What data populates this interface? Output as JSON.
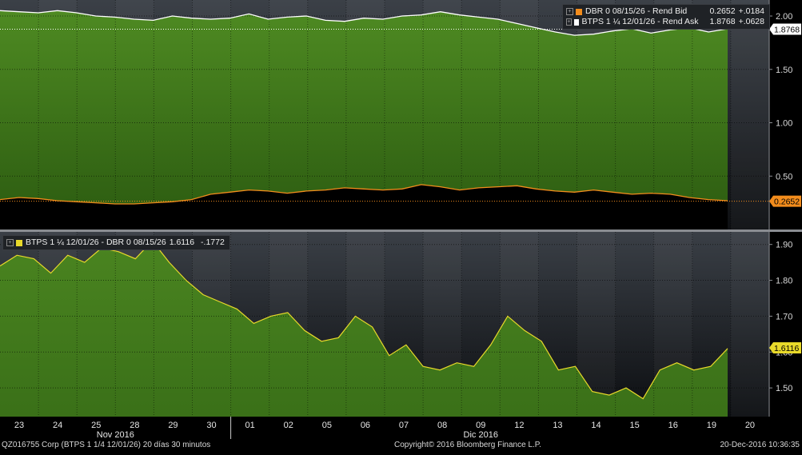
{
  "chart_data": [
    {
      "type": "area",
      "panel": "top",
      "ylim": [
        0.0,
        2.15
      ],
      "yticks": [
        "0.50",
        "1.00",
        "1.50",
        "2.00"
      ],
      "grid": true,
      "legend_position": "top-right",
      "series": [
        {
          "name": "DBR 0 08/15/26 - Rend Bid",
          "last": "0.2652",
          "change": "+.0184",
          "color": "#f28c1c",
          "values": [
            0.28,
            0.3,
            0.29,
            0.27,
            0.26,
            0.25,
            0.24,
            0.24,
            0.25,
            0.26,
            0.28,
            0.33,
            0.35,
            0.37,
            0.36,
            0.34,
            0.36,
            0.37,
            0.39,
            0.38,
            0.37,
            0.38,
            0.42,
            0.4,
            0.37,
            0.39,
            0.4,
            0.41,
            0.38,
            0.36,
            0.35,
            0.37,
            0.35,
            0.33,
            0.34,
            0.33,
            0.3,
            0.28,
            0.27
          ]
        },
        {
          "name": "BTPS 1 ¼ 12/01/26 - Rend Ask",
          "last": "1.8768",
          "change": "+.0628",
          "color": "#ffffff",
          "values": [
            2.05,
            2.04,
            2.03,
            2.05,
            2.03,
            2.0,
            1.99,
            1.97,
            1.96,
            2.0,
            1.98,
            1.97,
            1.98,
            2.02,
            1.97,
            1.99,
            2.0,
            1.96,
            1.95,
            1.98,
            1.97,
            2.0,
            2.01,
            2.04,
            2.01,
            1.99,
            1.97,
            1.93,
            1.89,
            1.85,
            1.82,
            1.83,
            1.86,
            1.88,
            1.84,
            1.87,
            1.89,
            1.85,
            1.88
          ]
        }
      ]
    },
    {
      "type": "area",
      "panel": "bottom",
      "ylim": [
        1.42,
        1.935
      ],
      "yticks": [
        "1.50",
        "1.60",
        "1.70",
        "1.80",
        "1.90"
      ],
      "grid": true,
      "legend_position": "top-left",
      "series": [
        {
          "name": "BTPS 1 ¼ 12/01/26 - DBR 0 08/15/26",
          "last": "1.6116",
          "change": "-.1772",
          "color": "#e8d92a",
          "values": [
            1.84,
            1.87,
            1.86,
            1.82,
            1.87,
            1.85,
            1.89,
            1.88,
            1.86,
            1.91,
            1.85,
            1.8,
            1.76,
            1.74,
            1.72,
            1.68,
            1.7,
            1.71,
            1.66,
            1.63,
            1.64,
            1.7,
            1.67,
            1.59,
            1.62,
            1.56,
            1.55,
            1.57,
            1.56,
            1.62,
            1.7,
            1.66,
            1.63,
            1.55,
            1.56,
            1.49,
            1.48,
            1.5,
            1.47,
            1.55,
            1.57,
            1.55,
            1.56,
            1.61
          ]
        }
      ]
    }
  ],
  "x_axis": {
    "day_labels": [
      "23",
      "24",
      "25",
      "28",
      "29",
      "30",
      "01",
      "02",
      "05",
      "06",
      "07",
      "08",
      "09",
      "12",
      "13",
      "14",
      "15",
      "16",
      "19",
      "20"
    ],
    "month_labels": [
      "Nov 2016",
      "Dic 2016"
    ]
  },
  "footer": {
    "left": "QZ016755 Corp (BTPS 1 1/4 12/01/26) 20 días 30 minutos",
    "center": "Copyright© 2016 Bloomberg Finance L.P.",
    "right": "20-Dec-2016 10:36:35"
  },
  "colors": {
    "area_green": "#4e8a22",
    "area_dark_green": "#2e5e12",
    "orange": "#f28c1c",
    "yellow": "#e8d92a"
  }
}
